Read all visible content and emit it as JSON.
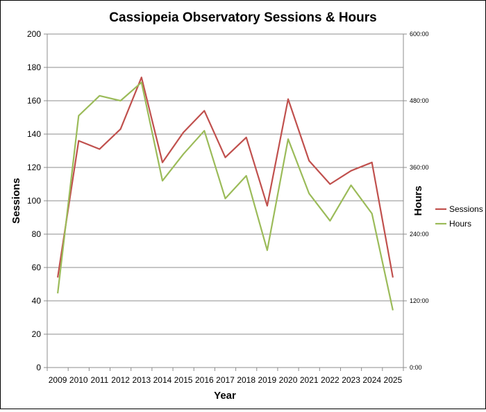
{
  "chart_data": {
    "type": "line",
    "title": "Cassiopeia Observatory Sessions & Hours",
    "xlabel": "Year",
    "ylabel": "Sessions",
    "y2label": "Hours",
    "categories": [
      "2009",
      "2010",
      "2011",
      "2012",
      "2013",
      "2014",
      "2015",
      "2016",
      "2017",
      "2018",
      "2019",
      "2020",
      "2021",
      "2022",
      "2023",
      "2024",
      "2025"
    ],
    "ylim": [
      0,
      200
    ],
    "yticks": [
      "0",
      "20",
      "40",
      "60",
      "80",
      "100",
      "120",
      "140",
      "160",
      "180",
      "200"
    ],
    "y2lim_minutes": [
      0,
      36000
    ],
    "y2ticks": [
      "0:00",
      "120:00",
      "240:00",
      "360:00",
      "480:00",
      "600:00"
    ],
    "grid": true,
    "legend_position": "right",
    "series": [
      {
        "name": "Sessions",
        "axis": "left",
        "color": "#c0504d",
        "values": [
          54,
          136,
          131,
          143,
          174,
          123,
          141,
          154,
          126,
          138,
          97,
          161,
          124,
          110,
          118,
          123,
          54
        ]
      },
      {
        "name": "Hours",
        "axis": "right",
        "color": "#9bbb59",
        "values_minutes": [
          8000,
          27180,
          29340,
          28800,
          30780,
          20160,
          23040,
          25560,
          18240,
          20700,
          12660,
          24660,
          18780,
          15840,
          19680,
          16620,
          6180
        ]
      }
    ]
  }
}
